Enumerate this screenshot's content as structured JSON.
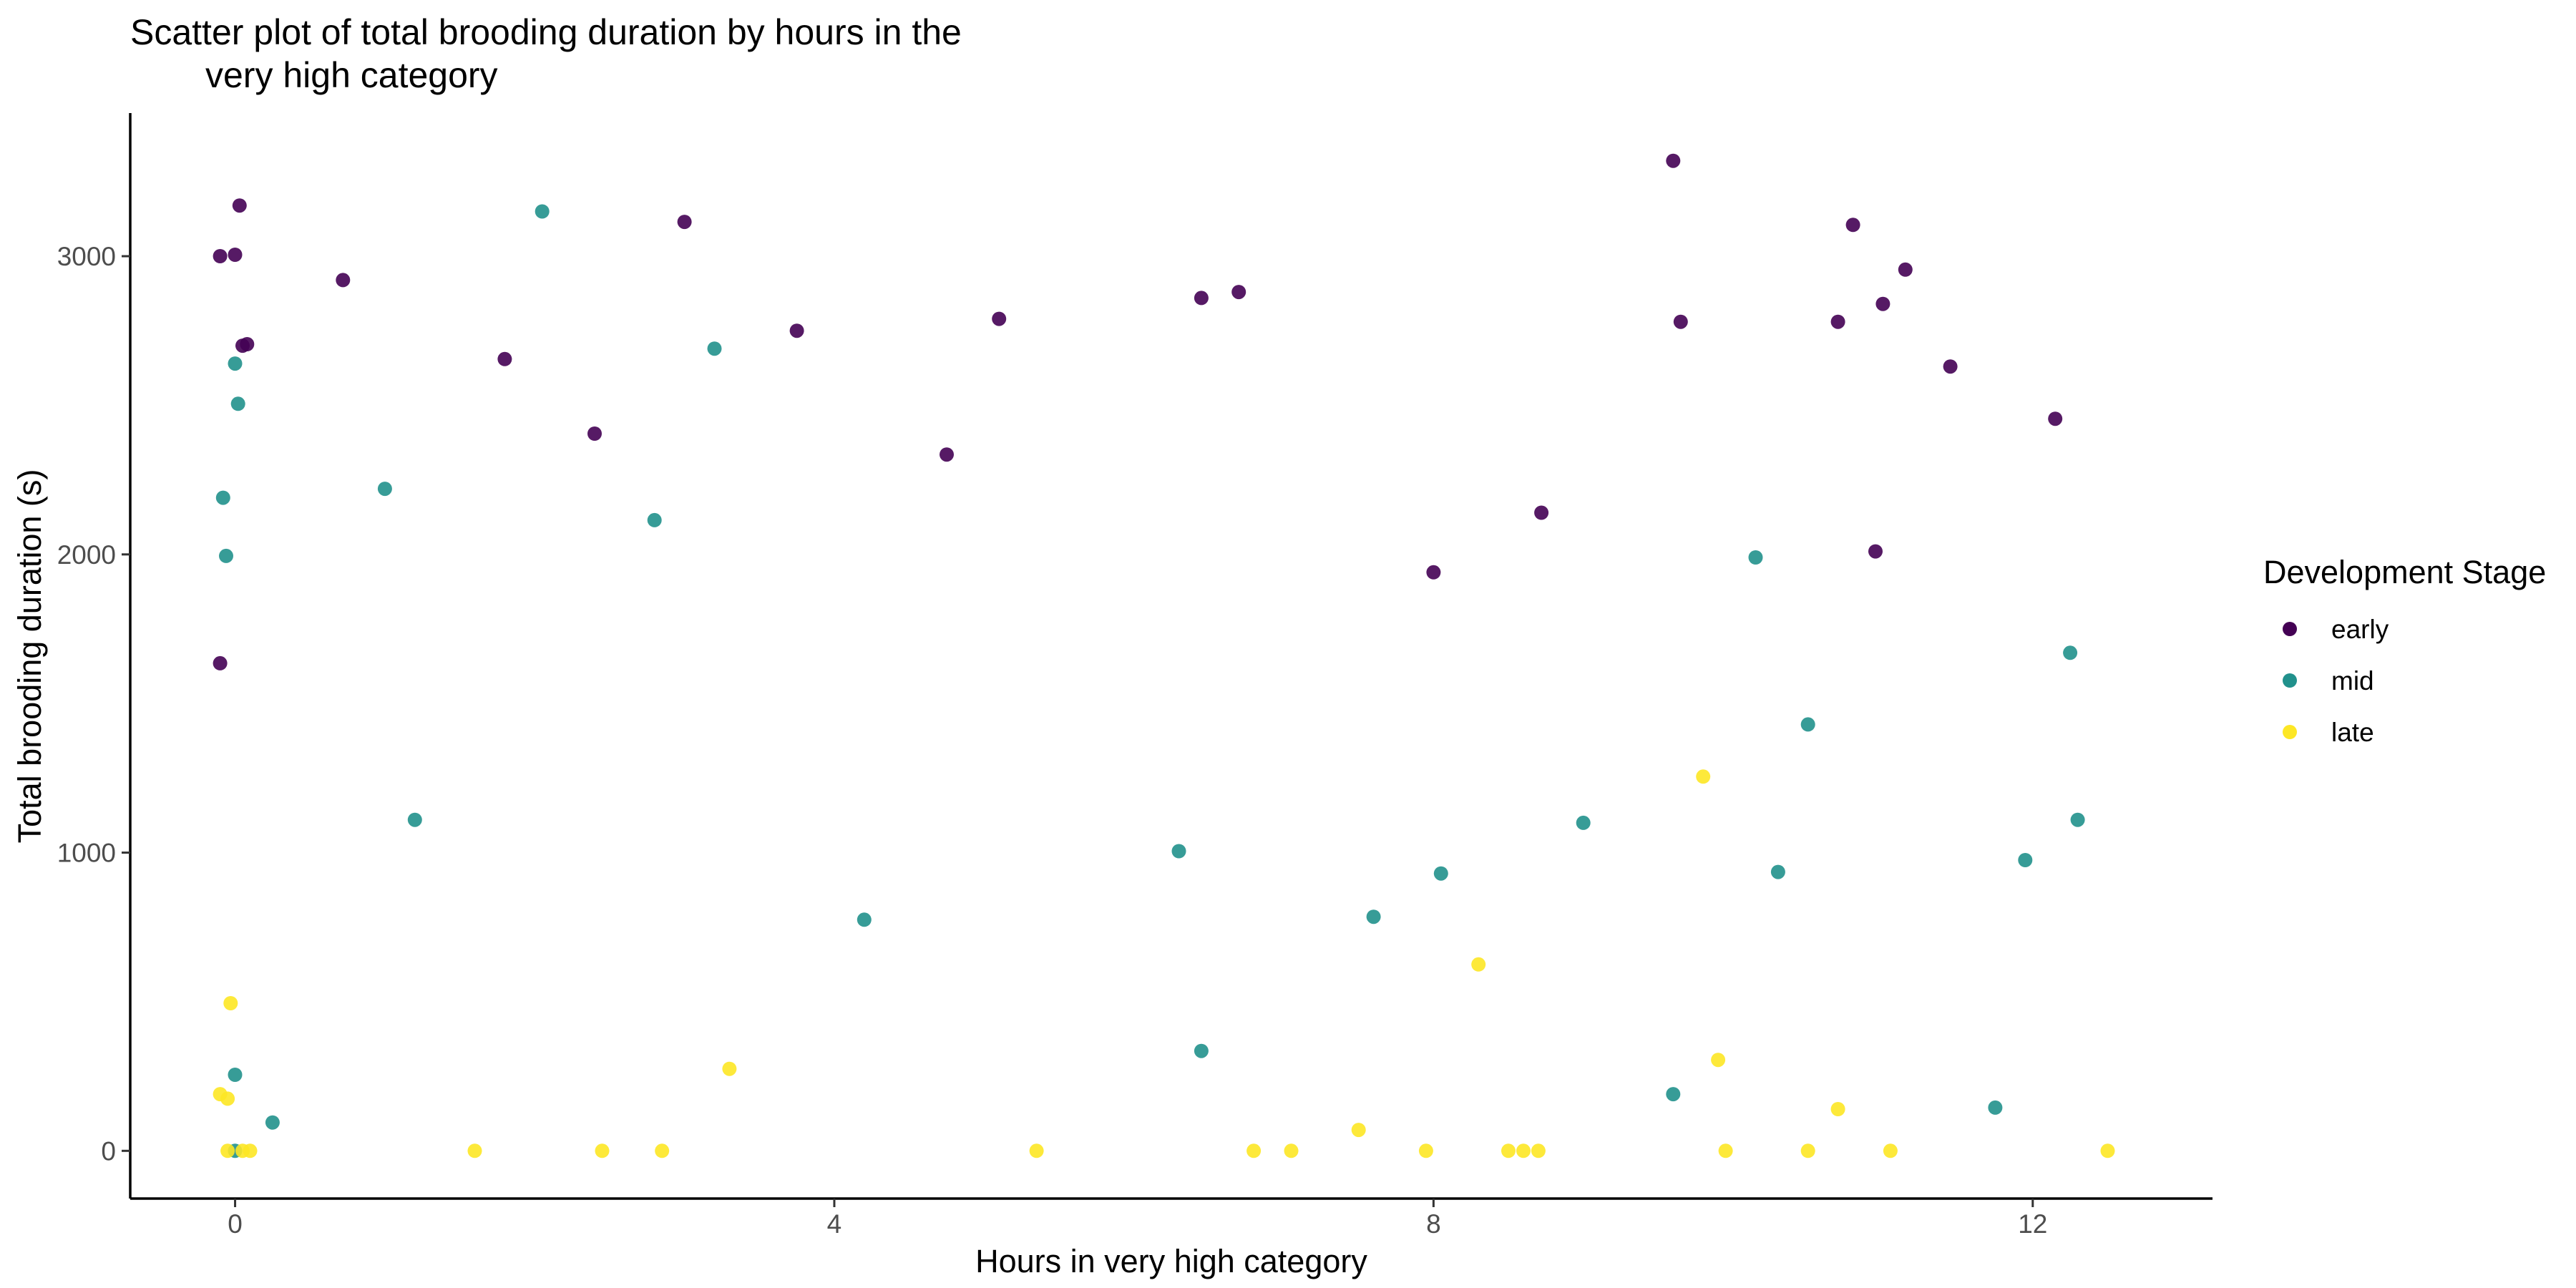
{
  "chart_data": {
    "type": "scatter",
    "title_lines": [
      "Scatter plot of total brooding duration by hours in the",
      "very high category"
    ],
    "xlabel": "Hours in very high category",
    "ylabel": "Total brooding duration (s)",
    "xlim": [
      -0.7,
      13.2
    ],
    "ylim": [
      -160,
      3480
    ],
    "x_ticks": [
      0,
      4,
      8,
      12
    ],
    "x_tick_labels": [
      "0",
      "4",
      "8",
      "12"
    ],
    "y_ticks": [
      0,
      1000,
      2000,
      3000
    ],
    "y_tick_labels": [
      "0",
      "1000",
      "2000",
      "3000"
    ],
    "grid": false,
    "legend": {
      "title": "Development Stage",
      "placement": "right"
    },
    "series": [
      {
        "name": "early",
        "color": "#440154",
        "points": [
          [
            -0.1,
            3000
          ],
          [
            -0.1,
            1635
          ],
          [
            0.0,
            3005
          ],
          [
            0.03,
            3170
          ],
          [
            0.05,
            2700
          ],
          [
            0.08,
            2705
          ],
          [
            0.72,
            2920
          ],
          [
            1.8,
            2655
          ],
          [
            2.4,
            2405
          ],
          [
            3.0,
            3115
          ],
          [
            3.75,
            2750
          ],
          [
            4.75,
            2335
          ],
          [
            5.1,
            2790
          ],
          [
            6.45,
            2860
          ],
          [
            6.7,
            2880
          ],
          [
            8.0,
            1940
          ],
          [
            8.72,
            2140
          ],
          [
            9.6,
            3320
          ],
          [
            9.65,
            2780
          ],
          [
            10.7,
            2780
          ],
          [
            10.8,
            3105
          ],
          [
            10.95,
            2010
          ],
          [
            11.0,
            2840
          ],
          [
            11.15,
            2955
          ],
          [
            11.45,
            2630
          ],
          [
            12.15,
            2455
          ]
        ]
      },
      {
        "name": "mid",
        "color": "#21918c",
        "points": [
          [
            -0.08,
            2190
          ],
          [
            -0.06,
            1995
          ],
          [
            0.0,
            2640
          ],
          [
            0.02,
            2505
          ],
          [
            0.0,
            255
          ],
          [
            0.0,
            0
          ],
          [
            0.25,
            95
          ],
          [
            1.0,
            2220
          ],
          [
            1.2,
            1110
          ],
          [
            2.05,
            3150
          ],
          [
            2.8,
            2115
          ],
          [
            3.2,
            2690
          ],
          [
            4.2,
            775
          ],
          [
            6.3,
            1005
          ],
          [
            6.45,
            335
          ],
          [
            7.6,
            785
          ],
          [
            8.05,
            930
          ],
          [
            9.0,
            1100
          ],
          [
            9.6,
            190
          ],
          [
            10.15,
            1990
          ],
          [
            10.3,
            935
          ],
          [
            10.5,
            1430
          ],
          [
            11.75,
            145
          ],
          [
            11.95,
            975
          ],
          [
            12.25,
            1670
          ],
          [
            12.3,
            1110
          ]
        ]
      },
      {
        "name": "late",
        "color": "#fde725",
        "points": [
          [
            -0.1,
            190
          ],
          [
            -0.05,
            175
          ],
          [
            -0.03,
            495
          ],
          [
            -0.05,
            0
          ],
          [
            0.05,
            0
          ],
          [
            0.1,
            0
          ],
          [
            1.6,
            0
          ],
          [
            2.45,
            0
          ],
          [
            2.85,
            0
          ],
          [
            3.3,
            275
          ],
          [
            5.35,
            0
          ],
          [
            6.8,
            0
          ],
          [
            7.05,
            0
          ],
          [
            7.5,
            70
          ],
          [
            7.95,
            0
          ],
          [
            8.3,
            625
          ],
          [
            8.5,
            0
          ],
          [
            8.6,
            0
          ],
          [
            8.7,
            0
          ],
          [
            9.8,
            1255
          ],
          [
            9.9,
            305
          ],
          [
            9.95,
            0
          ],
          [
            10.5,
            0
          ],
          [
            10.7,
            140
          ],
          [
            11.05,
            0
          ],
          [
            12.5,
            0
          ]
        ]
      }
    ]
  }
}
